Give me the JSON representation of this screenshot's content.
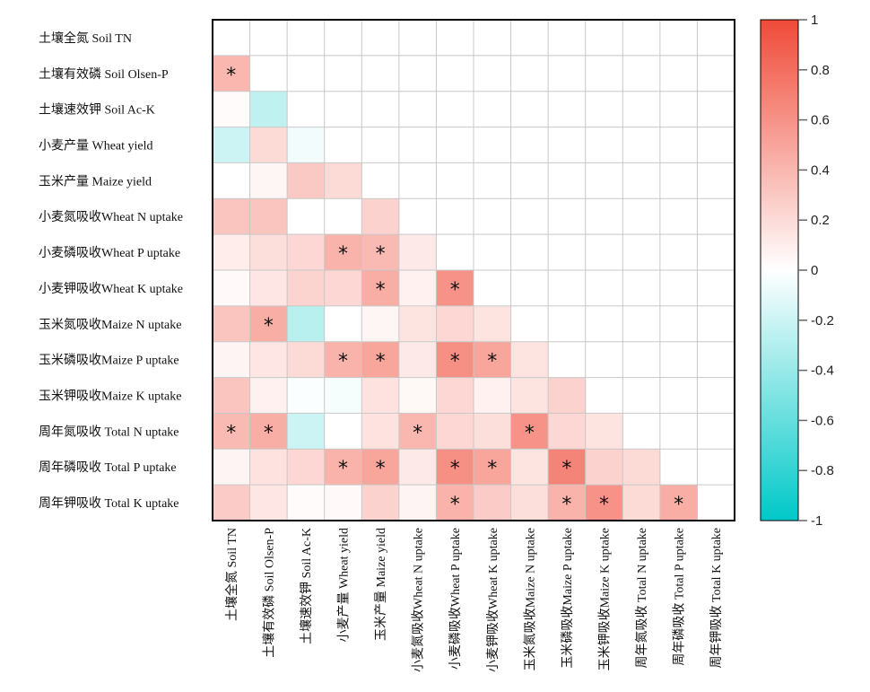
{
  "chart_data": {
    "type": "heatmap",
    "title": "",
    "variables": [
      "土壤全氮 Soil TN",
      "土壤有效磷 Soil Olsen-P",
      "土壤速效钾 Soil Ac-K",
      "小麦产量 Wheat yield",
      "玉米产量 Maize yield",
      "小麦氮吸收Wheat N uptake",
      "小麦磷吸收Wheat P uptake",
      "小麦钾吸收Wheat K uptake",
      "玉米氮吸收Maize N uptake",
      "玉米磷吸收Maize P uptake",
      "玉米钾吸收Maize K uptake",
      "周年氮吸收 Total N uptake",
      "周年磷吸收 Total P uptake",
      "周年钾吸收 Total K uptake"
    ],
    "lower_triangle_values": [
      [],
      [
        0.4
      ],
      [
        0.02,
        -0.25
      ],
      [
        -0.2,
        0.2,
        -0.05
      ],
      [
        0.0,
        0.05,
        0.3,
        0.2
      ],
      [
        0.32,
        0.32,
        0.0,
        0.0,
        0.25
      ],
      [
        0.1,
        0.18,
        0.22,
        0.42,
        0.38,
        0.12
      ],
      [
        0.03,
        0.14,
        0.24,
        0.22,
        0.45,
        0.08,
        0.6
      ],
      [
        0.32,
        0.45,
        -0.28,
        0.0,
        0.05,
        0.15,
        0.22,
        0.15
      ],
      [
        0.06,
        0.14,
        0.2,
        0.42,
        0.5,
        0.12,
        0.62,
        0.5,
        0.15
      ],
      [
        0.32,
        0.08,
        -0.02,
        -0.04,
        0.16,
        0.04,
        0.22,
        0.08,
        0.15,
        0.25
      ],
      [
        0.38,
        0.45,
        -0.2,
        0.0,
        0.16,
        0.4,
        0.22,
        0.18,
        0.6,
        0.22,
        0.15
      ],
      [
        0.06,
        0.16,
        0.22,
        0.42,
        0.5,
        0.12,
        0.62,
        0.5,
        0.15,
        0.68,
        0.25,
        0.2
      ],
      [
        0.28,
        0.14,
        0.02,
        0.03,
        0.25,
        0.06,
        0.42,
        0.28,
        0.18,
        0.42,
        0.6,
        0.2,
        0.45
      ]
    ],
    "significant": [
      [],
      [
        1
      ],
      [
        0,
        0
      ],
      [
        0,
        0,
        0
      ],
      [
        0,
        0,
        0,
        0
      ],
      [
        0,
        0,
        0,
        0,
        0
      ],
      [
        0,
        0,
        0,
        1,
        1,
        0
      ],
      [
        0,
        0,
        0,
        0,
        1,
        0,
        1
      ],
      [
        0,
        1,
        0,
        0,
        0,
        0,
        0,
        0
      ],
      [
        0,
        0,
        0,
        1,
        1,
        0,
        1,
        1,
        0
      ],
      [
        0,
        0,
        0,
        0,
        0,
        0,
        0,
        0,
        0,
        0
      ],
      [
        1,
        1,
        0,
        0,
        0,
        1,
        0,
        0,
        1,
        0,
        0
      ],
      [
        0,
        0,
        0,
        1,
        1,
        0,
        1,
        1,
        0,
        1,
        0,
        0
      ],
      [
        0,
        0,
        0,
        0,
        0,
        0,
        1,
        0,
        0,
        1,
        1,
        0,
        1
      ]
    ],
    "significance_marker": "*",
    "colorbar": {
      "range": [
        -1,
        1
      ],
      "ticks": [
        "1",
        "0.8",
        "0.6",
        "0.4",
        "0.2",
        "0",
        "-0.2",
        "-0.4",
        "-0.6",
        "-0.8",
        "-1"
      ],
      "tick_values": [
        1,
        0.8,
        0.6,
        0.4,
        0.2,
        0,
        -0.2,
        -0.4,
        -0.6,
        -0.8,
        -1
      ],
      "high_color": "#f04a38",
      "mid_color": "#ffffff",
      "low_color": "#00c8c8",
      "placement": "right"
    },
    "grid": true,
    "xlabel": "",
    "ylabel": ""
  }
}
